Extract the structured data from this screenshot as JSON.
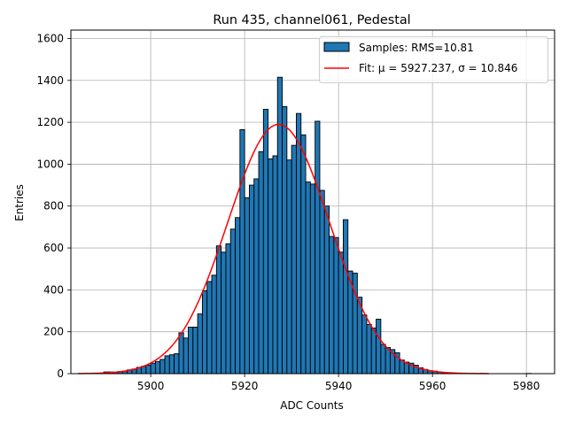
{
  "chart_data": {
    "type": "bar",
    "title": "Run 435, channel061, Pedestal",
    "xlabel": "ADC Counts",
    "ylabel": "Entries",
    "xlim": [
      5883,
      5986
    ],
    "ylim": [
      0,
      1640
    ],
    "xticks": [
      5900,
      5920,
      5940,
      5960,
      5980
    ],
    "yticks": [
      0,
      200,
      400,
      600,
      800,
      1000,
      1200,
      1400,
      1600
    ],
    "grid": true,
    "legend_position": "top-right",
    "bin_width": 1,
    "histogram": {
      "name": "Samples: RMS=10.81",
      "color": "#1f77b4",
      "edgecolor": "#000000",
      "bins": [
        {
          "x": 5890,
          "y": 8
        },
        {
          "x": 5891,
          "y": 8
        },
        {
          "x": 5892,
          "y": 6
        },
        {
          "x": 5893,
          "y": 10
        },
        {
          "x": 5894,
          "y": 12
        },
        {
          "x": 5895,
          "y": 18
        },
        {
          "x": 5896,
          "y": 22
        },
        {
          "x": 5897,
          "y": 30
        },
        {
          "x": 5898,
          "y": 35
        },
        {
          "x": 5899,
          "y": 40
        },
        {
          "x": 5900,
          "y": 50
        },
        {
          "x": 5901,
          "y": 58
        },
        {
          "x": 5902,
          "y": 68
        },
        {
          "x": 5903,
          "y": 85
        },
        {
          "x": 5904,
          "y": 90
        },
        {
          "x": 5905,
          "y": 95
        },
        {
          "x": 5906,
          "y": 195
        },
        {
          "x": 5907,
          "y": 170
        },
        {
          "x": 5908,
          "y": 222
        },
        {
          "x": 5909,
          "y": 222
        },
        {
          "x": 5910,
          "y": 285
        },
        {
          "x": 5911,
          "y": 395
        },
        {
          "x": 5912,
          "y": 440
        },
        {
          "x": 5913,
          "y": 470
        },
        {
          "x": 5914,
          "y": 610
        },
        {
          "x": 5915,
          "y": 580
        },
        {
          "x": 5916,
          "y": 620
        },
        {
          "x": 5917,
          "y": 690
        },
        {
          "x": 5918,
          "y": 745
        },
        {
          "x": 5919,
          "y": 1165
        },
        {
          "x": 5920,
          "y": 840
        },
        {
          "x": 5921,
          "y": 900
        },
        {
          "x": 5922,
          "y": 930
        },
        {
          "x": 5923,
          "y": 1060
        },
        {
          "x": 5924,
          "y": 1262
        },
        {
          "x": 5925,
          "y": 1025
        },
        {
          "x": 5926,
          "y": 1040
        },
        {
          "x": 5927,
          "y": 1415
        },
        {
          "x": 5928,
          "y": 1275
        },
        {
          "x": 5929,
          "y": 1020
        },
        {
          "x": 5930,
          "y": 1090
        },
        {
          "x": 5931,
          "y": 1242
        },
        {
          "x": 5932,
          "y": 1140
        },
        {
          "x": 5933,
          "y": 915
        },
        {
          "x": 5934,
          "y": 905
        },
        {
          "x": 5935,
          "y": 1205
        },
        {
          "x": 5936,
          "y": 875
        },
        {
          "x": 5937,
          "y": 800
        },
        {
          "x": 5938,
          "y": 655
        },
        {
          "x": 5939,
          "y": 650
        },
        {
          "x": 5940,
          "y": 580
        },
        {
          "x": 5941,
          "y": 735
        },
        {
          "x": 5942,
          "y": 490
        },
        {
          "x": 5943,
          "y": 480
        },
        {
          "x": 5944,
          "y": 365
        },
        {
          "x": 5945,
          "y": 280
        },
        {
          "x": 5946,
          "y": 235
        },
        {
          "x": 5947,
          "y": 218
        },
        {
          "x": 5948,
          "y": 260
        },
        {
          "x": 5949,
          "y": 140
        },
        {
          "x": 5950,
          "y": 125
        },
        {
          "x": 5951,
          "y": 115
        },
        {
          "x": 5952,
          "y": 100
        },
        {
          "x": 5953,
          "y": 65
        },
        {
          "x": 5954,
          "y": 55
        },
        {
          "x": 5955,
          "y": 50
        },
        {
          "x": 5956,
          "y": 40
        },
        {
          "x": 5957,
          "y": 28
        },
        {
          "x": 5958,
          "y": 20
        },
        {
          "x": 5959,
          "y": 14
        },
        {
          "x": 5960,
          "y": 12
        },
        {
          "x": 5961,
          "y": 8
        },
        {
          "x": 5962,
          "y": 5
        },
        {
          "x": 5963,
          "y": 4
        },
        {
          "x": 5964,
          "y": 3
        },
        {
          "x": 5965,
          "y": 2
        },
        {
          "x": 5966,
          "y": 2
        },
        {
          "x": 5967,
          "y": 1
        },
        {
          "x": 5968,
          "y": 1
        },
        {
          "x": 5970,
          "y": 1
        },
        {
          "x": 5980,
          "y": 1
        }
      ]
    },
    "fit": {
      "name": "Fit: μ = 5927.237, σ = 10.846",
      "color": "#ff0000",
      "type": "gaussian",
      "mu": 5927.237,
      "sigma": 10.846,
      "amplitude": 1190,
      "x_range": [
        5884.5,
        5972
      ]
    }
  }
}
